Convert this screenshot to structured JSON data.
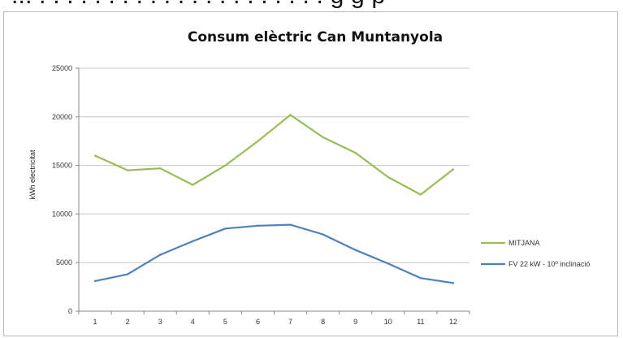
{
  "cropped_heading": "... . . . . . . . . . . . . . . . . . . . . . g g p",
  "chart_data": {
    "type": "line",
    "title": "Consum elèctric Can Muntanyola",
    "xlabel": "",
    "ylabel": "kWh electricitat",
    "categories": [
      "1",
      "2",
      "3",
      "4",
      "5",
      "6",
      "7",
      "8",
      "9",
      "10",
      "11",
      "12"
    ],
    "ylim": [
      0,
      25000
    ],
    "yticks": [
      "0",
      "5000",
      "10000",
      "15000",
      "20000",
      "25000"
    ],
    "grid": true,
    "legend_position": "right",
    "series": [
      {
        "name": "MITJANA",
        "color": "#9bbb59",
        "values": [
          16000,
          14500,
          14700,
          13000,
          15000,
          17500,
          20200,
          17900,
          16300,
          13800,
          12000,
          14600
        ]
      },
      {
        "name": "FV 22 kW - 10º inclinació",
        "color": "#4f81bd",
        "values": [
          3100,
          3800,
          5800,
          7200,
          8500,
          8800,
          8900,
          7900,
          6300,
          4900,
          3400,
          2900
        ]
      }
    ]
  }
}
